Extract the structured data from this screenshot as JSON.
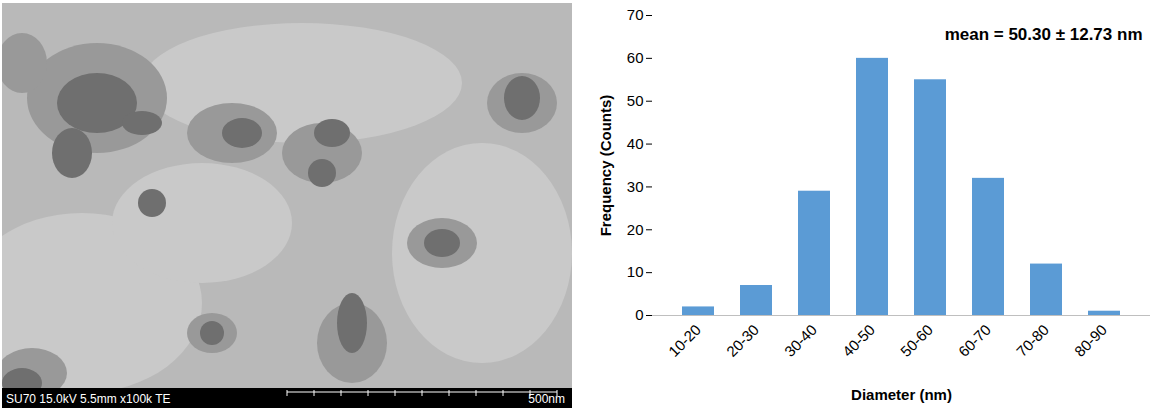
{
  "micrograph": {
    "caption": "SU70 15.0kV 5.5mm x100k TE",
    "scale_bar_label": "500nm"
  },
  "chart_data": {
    "type": "bar",
    "categories": [
      "10-20",
      "20-30",
      "30-40",
      "40-50",
      "50-60",
      "60-70",
      "70-80",
      "80-90"
    ],
    "values": [
      2,
      7,
      29,
      60,
      55,
      32,
      12,
      1
    ],
    "color": "#5b9bd5",
    "xlabel": "Diameter (nm)",
    "ylabel": "Frequency (Counts)",
    "annotations": [
      "mean = 50.30 ± 12.73 nm"
    ],
    "ylim": [
      0,
      70
    ],
    "yticks": [
      0,
      10,
      20,
      30,
      40,
      50,
      60,
      70
    ],
    "grid": false
  }
}
